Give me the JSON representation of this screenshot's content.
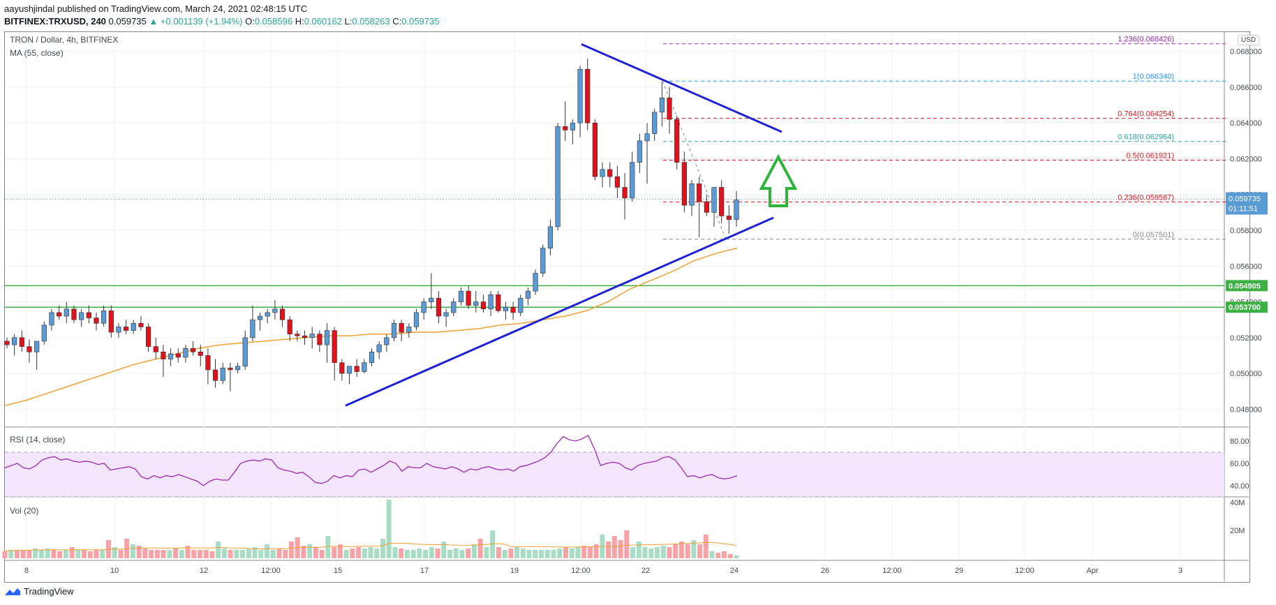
{
  "header": {
    "publisher": "aayushjindal",
    "published_text": "published on TradingView.com, March 24, 2021 02:48:15 UTC",
    "symbol_line": "BITFINEX:TRXUSD, 240",
    "last": "0.059735",
    "change": "▲ +0.001139 (+1.94%)",
    "open_label": "O:",
    "open": "0.058596",
    "high_label": "H:",
    "high": "0.060162",
    "low_label": "L:",
    "low": "0.058263",
    "close_label": "C:",
    "close": "0.059735"
  },
  "legend": {
    "title": "TRON / Dollar, 4h, BITFINEX",
    "ma": "MA (55, close)",
    "rsi": "RSI (14, close)",
    "vol": "Vol (20)",
    "currency": "USD"
  },
  "footer": {
    "brand": "TradingView"
  },
  "colors": {
    "up": "#5b9bd5",
    "down": "#e0121b",
    "trend": "#1e22d4",
    "ma": "#f0a030",
    "support": "#3cb043",
    "arrow": "#2db53a",
    "rsi": "#9c27b0",
    "vol_up": "#a9dcc4",
    "vol_down": "#f5a3a6"
  },
  "chart_data": [
    {
      "type": "candlestick",
      "title": "TRON / Dollar, 4h, BITFINEX",
      "ylim": [
        0.047,
        0.069
      ],
      "y_ticks": [
        "0.068000",
        "0.066000",
        "0.064000",
        "0.062000",
        "0.060000",
        "0.058000",
        "0.056000",
        "0.054000",
        "0.052000",
        "0.050000",
        "0.048000"
      ],
      "x_ticks": [
        "8",
        "10",
        "12",
        "12:00",
        "15",
        "17",
        "19",
        "12:00",
        "22",
        "24",
        "26",
        "12:00",
        "29",
        "12:00",
        "Apr",
        "3"
      ],
      "candles": [
        [
          0.0518,
          0.052,
          0.0514,
          0.0516
        ],
        [
          0.0516,
          0.0522,
          0.051,
          0.052
        ],
        [
          0.052,
          0.0524,
          0.0512,
          0.0515
        ],
        [
          0.0515,
          0.0519,
          0.0506,
          0.0512
        ],
        [
          0.0512,
          0.0517,
          0.0502,
          0.0518
        ],
        [
          0.0518,
          0.0529,
          0.0516,
          0.0527
        ],
        [
          0.0527,
          0.0536,
          0.0524,
          0.0534
        ],
        [
          0.0534,
          0.0538,
          0.053,
          0.0532
        ],
        [
          0.0532,
          0.054,
          0.0528,
          0.0536
        ],
        [
          0.0536,
          0.0538,
          0.0528,
          0.053
        ],
        [
          0.053,
          0.0536,
          0.0526,
          0.0534
        ],
        [
          0.0534,
          0.0538,
          0.0528,
          0.0531
        ],
        [
          0.0531,
          0.0534,
          0.0524,
          0.0528
        ],
        [
          0.0528,
          0.0538,
          0.0526,
          0.0535
        ],
        [
          0.0535,
          0.0538,
          0.052,
          0.0523
        ],
        [
          0.0523,
          0.0528,
          0.052,
          0.0526
        ],
        [
          0.0526,
          0.053,
          0.0522,
          0.0524
        ],
        [
          0.0524,
          0.053,
          0.0522,
          0.0528
        ],
        [
          0.0528,
          0.0532,
          0.0524,
          0.0526
        ],
        [
          0.0526,
          0.0528,
          0.0512,
          0.0515
        ],
        [
          0.0515,
          0.052,
          0.0508,
          0.0512
        ],
        [
          0.0512,
          0.0516,
          0.0498,
          0.0508
        ],
        [
          0.0508,
          0.0514,
          0.0504,
          0.0511
        ],
        [
          0.0511,
          0.0514,
          0.0506,
          0.0509
        ],
        [
          0.0509,
          0.0516,
          0.0506,
          0.0514
        ],
        [
          0.0514,
          0.0518,
          0.051,
          0.0512
        ],
        [
          0.0512,
          0.0516,
          0.0504,
          0.051
        ],
        [
          0.051,
          0.0514,
          0.0494,
          0.0502
        ],
        [
          0.0502,
          0.0508,
          0.0492,
          0.0496
        ],
        [
          0.0496,
          0.0506,
          0.0494,
          0.0503
        ],
        [
          0.0503,
          0.0506,
          0.049,
          0.0502
        ],
        [
          0.0502,
          0.0506,
          0.05,
          0.0504
        ],
        [
          0.0504,
          0.0524,
          0.0502,
          0.052
        ],
        [
          0.052,
          0.0538,
          0.0518,
          0.053
        ],
        [
          0.053,
          0.0534,
          0.0524,
          0.0532
        ],
        [
          0.0532,
          0.0536,
          0.0528,
          0.0534
        ],
        [
          0.0534,
          0.0541,
          0.053,
          0.0536
        ],
        [
          0.0536,
          0.0538,
          0.0526,
          0.053
        ],
        [
          0.053,
          0.0532,
          0.0518,
          0.0522
        ],
        [
          0.0522,
          0.0524,
          0.0518,
          0.0521
        ],
        [
          0.0521,
          0.0524,
          0.0516,
          0.052
        ],
        [
          0.052,
          0.0526,
          0.0514,
          0.0522
        ],
        [
          0.0522,
          0.0524,
          0.0512,
          0.0516
        ],
        [
          0.0516,
          0.0528,
          0.0506,
          0.0524
        ],
        [
          0.0524,
          0.0526,
          0.0496,
          0.0506
        ],
        [
          0.0506,
          0.0508,
          0.0496,
          0.05
        ],
        [
          0.05,
          0.0504,
          0.0494,
          0.0504
        ],
        [
          0.0504,
          0.0508,
          0.0498,
          0.0501
        ],
        [
          0.0501,
          0.0508,
          0.05,
          0.0506
        ],
        [
          0.0506,
          0.0514,
          0.0504,
          0.0512
        ],
        [
          0.0512,
          0.0518,
          0.0508,
          0.0516
        ],
        [
          0.0516,
          0.0522,
          0.0512,
          0.052
        ],
        [
          0.052,
          0.053,
          0.0518,
          0.0528
        ],
        [
          0.0528,
          0.053,
          0.0518,
          0.0523
        ],
        [
          0.0523,
          0.0528,
          0.052,
          0.0526
        ],
        [
          0.0526,
          0.0536,
          0.0524,
          0.0534
        ],
        [
          0.0534,
          0.0542,
          0.053,
          0.054
        ],
        [
          0.054,
          0.0556,
          0.0536,
          0.0542
        ],
        [
          0.0542,
          0.0546,
          0.0528,
          0.0532
        ],
        [
          0.0532,
          0.0536,
          0.0526,
          0.0534
        ],
        [
          0.0534,
          0.0542,
          0.0532,
          0.054
        ],
        [
          0.054,
          0.0548,
          0.0538,
          0.0546
        ],
        [
          0.0546,
          0.0549,
          0.0536,
          0.0538
        ],
        [
          0.0538,
          0.0546,
          0.0534,
          0.054
        ],
        [
          0.054,
          0.0544,
          0.0534,
          0.0536
        ],
        [
          0.0536,
          0.0546,
          0.0532,
          0.0544
        ],
        [
          0.0544,
          0.0546,
          0.0534,
          0.0535
        ],
        [
          0.0535,
          0.054,
          0.053,
          0.0537
        ],
        [
          0.0537,
          0.054,
          0.053,
          0.0534
        ],
        [
          0.0534,
          0.0544,
          0.0532,
          0.0542
        ],
        [
          0.0542,
          0.0548,
          0.0538,
          0.0546
        ],
        [
          0.0546,
          0.0558,
          0.0544,
          0.0556
        ],
        [
          0.0556,
          0.0572,
          0.0554,
          0.057
        ],
        [
          0.057,
          0.0586,
          0.0566,
          0.0582
        ],
        [
          0.0582,
          0.064,
          0.058,
          0.0638
        ],
        [
          0.0638,
          0.0652,
          0.063,
          0.0636
        ],
        [
          0.0636,
          0.0642,
          0.0628,
          0.064
        ],
        [
          0.064,
          0.0672,
          0.0632,
          0.067
        ],
        [
          0.067,
          0.0676,
          0.0636,
          0.064
        ],
        [
          0.064,
          0.0642,
          0.0608,
          0.061
        ],
        [
          0.061,
          0.0618,
          0.0604,
          0.0614
        ],
        [
          0.0614,
          0.0618,
          0.0604,
          0.061
        ],
        [
          0.061,
          0.0616,
          0.0598,
          0.0604
        ],
        [
          0.0604,
          0.0612,
          0.0586,
          0.0598
        ],
        [
          0.0598,
          0.0624,
          0.0596,
          0.0618
        ],
        [
          0.0618,
          0.0634,
          0.0612,
          0.063
        ],
        [
          0.063,
          0.064,
          0.0606,
          0.0634
        ],
        [
          0.0634,
          0.0648,
          0.063,
          0.0646
        ],
        [
          0.0646,
          0.0663,
          0.0638,
          0.0654
        ],
        [
          0.0654,
          0.066,
          0.0634,
          0.0642
        ],
        [
          0.0642,
          0.0644,
          0.0614,
          0.0618
        ],
        [
          0.0618,
          0.0624,
          0.059,
          0.0594
        ],
        [
          0.0594,
          0.0608,
          0.0588,
          0.0606
        ],
        [
          0.0606,
          0.061,
          0.0576,
          0.0596
        ],
        [
          0.0596,
          0.06,
          0.0588,
          0.059
        ],
        [
          0.059,
          0.0604,
          0.0582,
          0.0604
        ],
        [
          0.0604,
          0.0608,
          0.0584,
          0.0588
        ],
        [
          0.0588,
          0.0594,
          0.0578,
          0.0586
        ],
        [
          0.0586,
          0.0602,
          0.0582,
          0.0597
        ]
      ],
      "ma55_series": [
        0.0482,
        0.0485,
        0.0489,
        0.0493,
        0.0497,
        0.0501,
        0.0505,
        0.0508,
        0.0511,
        0.0514,
        0.0516,
        0.0517,
        0.0518,
        0.0519,
        0.052,
        0.0521,
        0.0521,
        0.0522,
        0.0522,
        0.0523,
        0.0523,
        0.0524,
        0.0525,
        0.0527,
        0.0528,
        0.053,
        0.0532,
        0.0535,
        0.054,
        0.0547,
        0.0552,
        0.0557,
        0.0563,
        0.0567,
        0.057
      ],
      "fibonacci": [
        {
          "level": "1.236",
          "price": "0.068426"
        },
        {
          "level": "1",
          "price": "0.066340"
        },
        {
          "level": "0.764",
          "price": "0.064254"
        },
        {
          "level": "0.618",
          "price": "0.062964"
        },
        {
          "level": "0.5",
          "price": "0.061921"
        },
        {
          "level": "0.236",
          "price": "0.059587"
        },
        {
          "level": "0",
          "price": "0.057501"
        }
      ],
      "support_levels": [
        "0.054905",
        "0.053700"
      ],
      "last_price_label": "0.059735",
      "countdown": "01:11:51"
    },
    {
      "type": "line",
      "title": "RSI (14, close)",
      "ylim": [
        30,
        90
      ],
      "y_ticks": [
        "80.00",
        "60.00",
        "40.00"
      ],
      "band": [
        30,
        70
      ],
      "values": [
        56,
        58,
        60,
        56,
        55,
        58,
        63,
        65,
        66,
        63,
        64,
        62,
        61,
        62,
        61,
        59,
        60,
        54,
        55,
        56,
        57,
        55,
        48,
        46,
        49,
        47,
        49,
        48,
        50,
        48,
        46,
        44,
        40,
        44,
        46,
        45,
        45,
        52,
        60,
        62,
        63,
        62,
        64,
        63,
        56,
        54,
        53,
        51,
        52,
        48,
        43,
        42,
        44,
        49,
        47,
        49,
        48,
        54,
        55,
        52,
        55,
        58,
        62,
        60,
        53,
        57,
        56,
        56,
        60,
        57,
        56,
        55,
        57,
        55,
        52,
        55,
        54,
        56,
        57,
        55,
        54,
        55,
        53,
        57,
        58,
        60,
        62,
        65,
        70,
        78,
        84,
        81,
        80,
        82,
        85,
        73,
        58,
        60,
        61,
        60,
        56,
        54,
        58,
        60,
        61,
        62,
        65,
        66,
        63,
        56,
        48,
        49,
        47,
        49,
        50,
        47,
        46,
        47,
        49
      ]
    },
    {
      "type": "bar",
      "title": "Vol (20)",
      "y_ticks": [
        "40M",
        "20M"
      ],
      "ylim": [
        0,
        42
      ],
      "values": [
        5,
        6,
        6,
        6,
        6,
        7,
        6,
        7,
        6,
        5,
        6,
        8,
        6,
        6,
        5,
        6,
        6,
        13,
        8,
        6,
        14,
        10,
        9,
        7,
        6,
        6,
        6,
        6,
        7,
        6,
        9,
        6,
        6,
        6,
        5,
        12,
        7,
        6,
        6,
        6,
        7,
        8,
        6,
        10,
        6,
        7,
        6,
        12,
        15,
        9,
        10,
        8,
        6,
        16,
        8,
        10,
        6,
        7,
        8,
        7,
        8,
        7,
        14,
        42,
        8,
        7,
        6,
        6,
        7,
        6,
        8,
        7,
        12,
        6,
        7,
        6,
        7,
        10,
        14,
        8,
        20,
        8,
        6,
        7,
        8,
        7,
        6,
        6,
        6,
        6,
        6,
        7,
        8,
        7,
        8,
        9,
        8,
        10,
        17,
        12,
        16,
        13,
        20,
        8,
        12,
        8,
        7,
        8,
        9,
        8,
        10,
        12,
        10,
        13,
        10,
        17,
        5,
        4,
        5,
        3,
        2
      ]
    }
  ]
}
